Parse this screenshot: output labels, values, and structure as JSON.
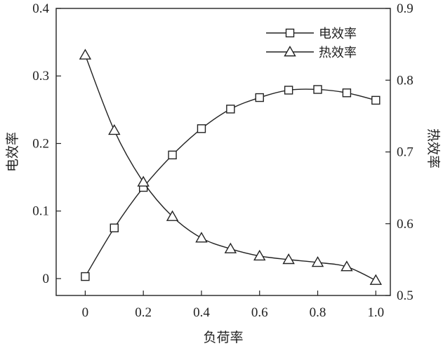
{
  "chart_data": {
    "type": "line",
    "xlabel": "负荷率",
    "ylabel_left": "电效率",
    "ylabel_right": "热效率",
    "xlim": [
      -0.1,
      1.05
    ],
    "ylim_left": [
      -0.025,
      0.4
    ],
    "ylim_right": [
      0.5,
      0.9
    ],
    "x_ticks": [
      0,
      0.2,
      0.4,
      0.6,
      0.8,
      1.0
    ],
    "x_tick_labels": [
      "0",
      "0.2",
      "0.4",
      "0.6",
      "0.8",
      "1.0"
    ],
    "y_left_ticks": [
      0,
      0.1,
      0.2,
      0.3,
      0.4
    ],
    "y_left_tick_labels": [
      "0",
      "0.1",
      "0.2",
      "0.3",
      "0.4"
    ],
    "y_right_ticks": [
      0.5,
      0.6,
      0.7,
      0.8,
      0.9
    ],
    "y_right_tick_labels": [
      "0.5",
      "0.6",
      "0.7",
      "0.8",
      "0.9"
    ],
    "legend_position": "top-right",
    "grid": false,
    "series": [
      {
        "name": "电效率",
        "axis": "left",
        "marker": "square",
        "x": [
          0,
          0.1,
          0.2,
          0.3,
          0.4,
          0.5,
          0.6,
          0.7,
          0.8,
          0.9,
          1.0
        ],
        "values": [
          0.003,
          0.075,
          0.135,
          0.183,
          0.222,
          0.251,
          0.268,
          0.279,
          0.28,
          0.275,
          0.264
        ]
      },
      {
        "name": "热效率",
        "axis": "right",
        "marker": "triangle",
        "x": [
          0,
          0.1,
          0.2,
          0.3,
          0.4,
          0.5,
          0.6,
          0.7,
          0.8,
          0.9,
          1.0
        ],
        "values": [
          0.835,
          0.73,
          0.658,
          0.61,
          0.58,
          0.565,
          0.555,
          0.55,
          0.546,
          0.54,
          0.521
        ]
      }
    ]
  }
}
